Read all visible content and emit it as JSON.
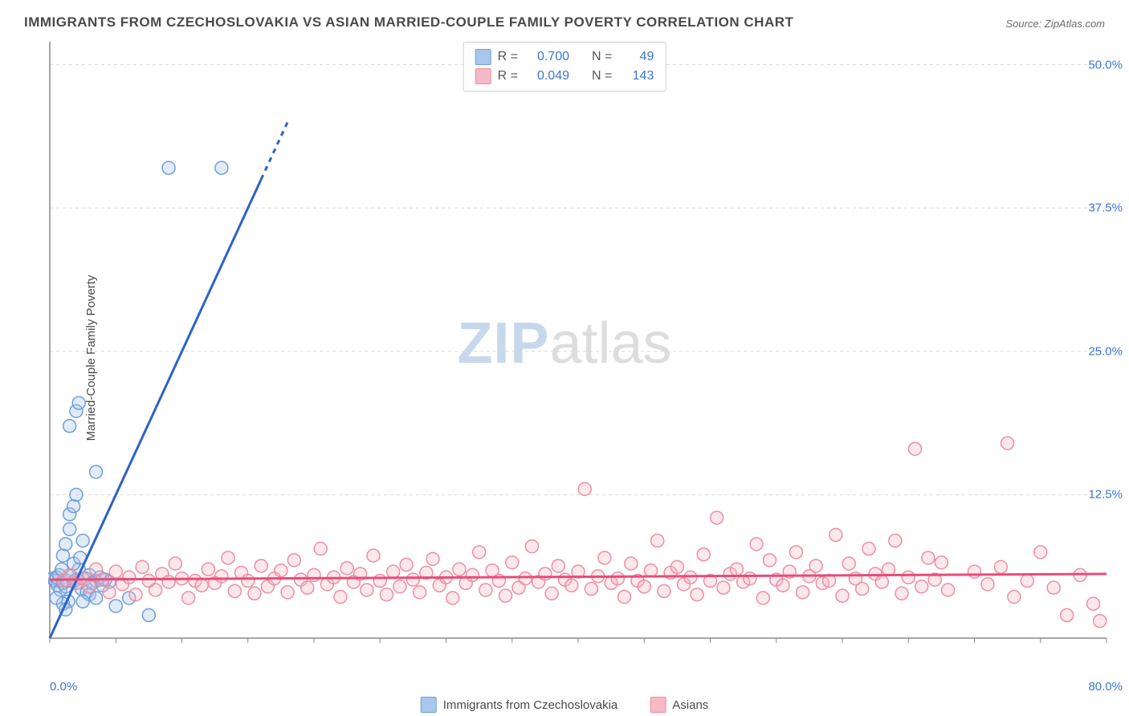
{
  "title": "IMMIGRANTS FROM CZECHOSLOVAKIA VS ASIAN MARRIED-COUPLE FAMILY POVERTY CORRELATION CHART",
  "source": "Source: ZipAtlas.com",
  "y_axis_label": "Married-Couple Family Poverty",
  "watermark": {
    "part1": "ZIP",
    "part2": "atlas"
  },
  "chart": {
    "type": "scatter",
    "background_color": "#ffffff",
    "grid_color": "#d8d8d8",
    "axis_color": "#888888",
    "xlim": [
      0,
      80
    ],
    "ylim": [
      0,
      52
    ],
    "x_ticks": [
      0,
      5,
      10,
      15,
      20,
      25,
      30,
      35,
      40,
      45,
      50,
      55,
      60,
      65,
      70,
      75,
      80
    ],
    "y_gridlines": [
      0,
      12.5,
      25,
      37.5,
      50
    ],
    "x_tick_labels_shown": {
      "0": "0.0%",
      "80": "80.0%"
    },
    "y_tick_labels_shown": {
      "12.5": "12.5%",
      "25": "25.0%",
      "37.5": "37.5%",
      "50": "50.0%"
    },
    "marker_radius": 8,
    "marker_fill_opacity": 0.35,
    "line_width": 3,
    "series": [
      {
        "name": "Immigrants from Czechoslovakia",
        "color_fill": "#a9c6ec",
        "color_stroke": "#6f9fd8",
        "trend_color": "#2e62c9",
        "R": "0.700",
        "N": "49",
        "trendline": {
          "x1": 0,
          "y1": 0,
          "x2": 18,
          "y2": 45,
          "dash_from_x": 16
        },
        "points": [
          [
            0.2,
            5.2
          ],
          [
            0.4,
            5.0
          ],
          [
            0.5,
            5.3
          ],
          [
            0.6,
            4.6
          ],
          [
            0.7,
            5.5
          ],
          [
            0.8,
            4.2
          ],
          [
            0.9,
            6.0
          ],
          [
            1.0,
            4.8
          ],
          [
            1.0,
            7.2
          ],
          [
            1.2,
            4.5
          ],
          [
            1.2,
            8.2
          ],
          [
            1.3,
            5.0
          ],
          [
            1.4,
            3.2
          ],
          [
            1.5,
            9.5
          ],
          [
            1.5,
            10.8
          ],
          [
            1.6,
            5.4
          ],
          [
            1.8,
            4.9
          ],
          [
            1.8,
            11.5
          ],
          [
            2.0,
            5.1
          ],
          [
            2.0,
            12.5
          ],
          [
            2.2,
            6.0
          ],
          [
            2.4,
            4.3
          ],
          [
            2.5,
            8.5
          ],
          [
            2.7,
            5.2
          ],
          [
            2.8,
            4.0
          ],
          [
            3.0,
            5.5
          ],
          [
            3.2,
            4.8
          ],
          [
            3.5,
            5.0
          ],
          [
            3.5,
            14.5
          ],
          [
            3.8,
            5.3
          ],
          [
            4.0,
            4.6
          ],
          [
            4.2,
            5.1
          ],
          [
            4.5,
            4.9
          ],
          [
            1.5,
            18.5
          ],
          [
            2.0,
            19.8
          ],
          [
            2.2,
            20.5
          ],
          [
            3.0,
            3.8
          ],
          [
            3.5,
            3.5
          ],
          [
            1.0,
            3.0
          ],
          [
            0.5,
            3.5
          ],
          [
            1.2,
            2.5
          ],
          [
            2.5,
            3.2
          ],
          [
            5.0,
            2.8
          ],
          [
            6.0,
            3.5
          ],
          [
            7.5,
            2.0
          ],
          [
            9.0,
            41.0
          ],
          [
            13.0,
            41.0
          ],
          [
            1.8,
            6.5
          ],
          [
            2.3,
            7.0
          ]
        ]
      },
      {
        "name": "Asians",
        "color_fill": "#f6b9c6",
        "color_stroke": "#ea8fa3",
        "trend_color": "#e94b7a",
        "R": "0.049",
        "N": "143",
        "trendline": {
          "x1": 0,
          "y1": 5.1,
          "x2": 80,
          "y2": 5.6
        },
        "points": [
          [
            1,
            5.0
          ],
          [
            1.5,
            5.5
          ],
          [
            2,
            4.8
          ],
          [
            2.5,
            5.2
          ],
          [
            3,
            4.5
          ],
          [
            3.5,
            6.0
          ],
          [
            4,
            5.1
          ],
          [
            4.5,
            4.0
          ],
          [
            5,
            5.8
          ],
          [
            5.5,
            4.7
          ],
          [
            6,
            5.3
          ],
          [
            6.5,
            3.8
          ],
          [
            7,
            6.2
          ],
          [
            7.5,
            5.0
          ],
          [
            8,
            4.2
          ],
          [
            8.5,
            5.6
          ],
          [
            9,
            4.9
          ],
          [
            9.5,
            6.5
          ],
          [
            10,
            5.2
          ],
          [
            10.5,
            3.5
          ],
          [
            11,
            5.0
          ],
          [
            11.5,
            4.6
          ],
          [
            12,
            6.0
          ],
          [
            12.5,
            4.8
          ],
          [
            13,
            5.4
          ],
          [
            13.5,
            7.0
          ],
          [
            14,
            4.1
          ],
          [
            14.5,
            5.7
          ],
          [
            15,
            5.0
          ],
          [
            15.5,
            3.9
          ],
          [
            16,
            6.3
          ],
          [
            16.5,
            4.5
          ],
          [
            17,
            5.2
          ],
          [
            17.5,
            5.9
          ],
          [
            18,
            4.0
          ],
          [
            18.5,
            6.8
          ],
          [
            19,
            5.1
          ],
          [
            19.5,
            4.4
          ],
          [
            20,
            5.5
          ],
          [
            20.5,
            7.8
          ],
          [
            21,
            4.7
          ],
          [
            21.5,
            5.3
          ],
          [
            22,
            3.6
          ],
          [
            22.5,
            6.1
          ],
          [
            23,
            4.9
          ],
          [
            23.5,
            5.6
          ],
          [
            24,
            4.2
          ],
          [
            24.5,
            7.2
          ],
          [
            25,
            5.0
          ],
          [
            25.5,
            3.8
          ],
          [
            26,
            5.8
          ],
          [
            26.5,
            4.5
          ],
          [
            27,
            6.4
          ],
          [
            27.5,
            5.1
          ],
          [
            28,
            4.0
          ],
          [
            28.5,
            5.7
          ],
          [
            29,
            6.9
          ],
          [
            29.5,
            4.6
          ],
          [
            30,
            5.3
          ],
          [
            30.5,
            3.5
          ],
          [
            31,
            6.0
          ],
          [
            31.5,
            4.8
          ],
          [
            32,
            5.5
          ],
          [
            32.5,
            7.5
          ],
          [
            33,
            4.2
          ],
          [
            33.5,
            5.9
          ],
          [
            34,
            5.0
          ],
          [
            34.5,
            3.7
          ],
          [
            35,
            6.6
          ],
          [
            35.5,
            4.4
          ],
          [
            36,
            5.2
          ],
          [
            36.5,
            8.0
          ],
          [
            37,
            4.9
          ],
          [
            37.5,
            5.6
          ],
          [
            38,
            3.9
          ],
          [
            38.5,
            6.3
          ],
          [
            39,
            5.1
          ],
          [
            39.5,
            4.6
          ],
          [
            40,
            5.8
          ],
          [
            40.5,
            13.0
          ],
          [
            41,
            4.3
          ],
          [
            41.5,
            5.4
          ],
          [
            42,
            7.0
          ],
          [
            42.5,
            4.8
          ],
          [
            43,
            5.2
          ],
          [
            43.5,
            3.6
          ],
          [
            44,
            6.5
          ],
          [
            44.5,
            5.0
          ],
          [
            45,
            4.5
          ],
          [
            45.5,
            5.9
          ],
          [
            46,
            8.5
          ],
          [
            46.5,
            4.1
          ],
          [
            47,
            5.7
          ],
          [
            47.5,
            6.2
          ],
          [
            48,
            4.7
          ],
          [
            48.5,
            5.3
          ],
          [
            49,
            3.8
          ],
          [
            49.5,
            7.3
          ],
          [
            50,
            5.0
          ],
          [
            50.5,
            10.5
          ],
          [
            51,
            4.4
          ],
          [
            51.5,
            5.6
          ],
          [
            52,
            6.0
          ],
          [
            52.5,
            4.9
          ],
          [
            53,
            5.2
          ],
          [
            53.5,
            8.2
          ],
          [
            54,
            3.5
          ],
          [
            54.5,
            6.8
          ],
          [
            55,
            5.1
          ],
          [
            55.5,
            4.6
          ],
          [
            56,
            5.8
          ],
          [
            56.5,
            7.5
          ],
          [
            57,
            4.0
          ],
          [
            57.5,
            5.4
          ],
          [
            58,
            6.3
          ],
          [
            58.5,
            4.8
          ],
          [
            59,
            5.0
          ],
          [
            59.5,
            9.0
          ],
          [
            60,
            3.7
          ],
          [
            60.5,
            6.5
          ],
          [
            61,
            5.2
          ],
          [
            61.5,
            4.3
          ],
          [
            62,
            7.8
          ],
          [
            62.5,
            5.6
          ],
          [
            63,
            4.9
          ],
          [
            63.5,
            6.0
          ],
          [
            64,
            8.5
          ],
          [
            64.5,
            3.9
          ],
          [
            65,
            5.3
          ],
          [
            65.5,
            16.5
          ],
          [
            66,
            4.5
          ],
          [
            66.5,
            7.0
          ],
          [
            67,
            5.1
          ],
          [
            67.5,
            6.6
          ],
          [
            68,
            4.2
          ],
          [
            70,
            5.8
          ],
          [
            71,
            4.7
          ],
          [
            72,
            6.2
          ],
          [
            72.5,
            17.0
          ],
          [
            73,
            3.6
          ],
          [
            74,
            5.0
          ],
          [
            75,
            7.5
          ],
          [
            76,
            4.4
          ],
          [
            77,
            2.0
          ],
          [
            78,
            5.5
          ],
          [
            79,
            3.0
          ],
          [
            79.5,
            1.5
          ]
        ]
      }
    ]
  },
  "legend_top": {
    "r_label": "R =",
    "n_label": "N ="
  },
  "legend_bottom": [
    "Immigrants from Czechoslovakia",
    "Asians"
  ]
}
